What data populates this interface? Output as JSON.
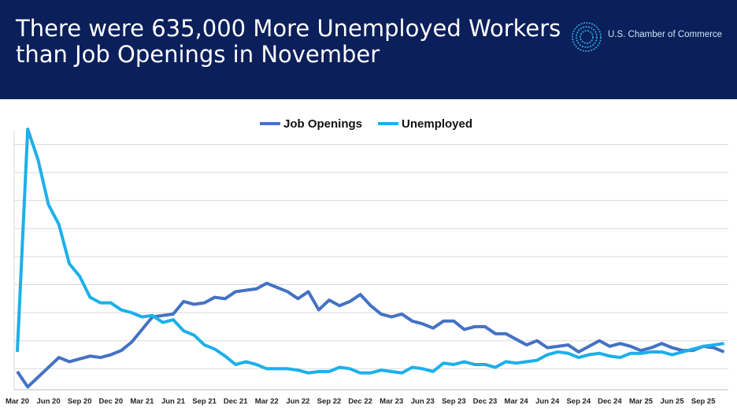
{
  "header": {
    "organization": "U.S. Chamber of Commerce"
  },
  "chart_data": {
    "type": "line",
    "title": "There were 635,000 More Unemployed Workers than Job Openings in November",
    "categories": [
      "Mar 20",
      null,
      null,
      "Jun 20",
      null,
      null,
      "Sep 20",
      null,
      null,
      "Dec 20",
      null,
      null,
      "Mar 21",
      null,
      null,
      "Jun 21",
      null,
      null,
      "Sep 21",
      null,
      null,
      "Dec 21",
      null,
      null,
      "Mar 22",
      null,
      null,
      "Jun 22",
      null,
      null,
      "Sep 22",
      null,
      null,
      "Dec 22",
      null,
      null,
      "Mar 23",
      null,
      null,
      "Jun 23",
      null,
      null,
      "Sep 23",
      null,
      null,
      "Dec 23",
      null,
      null,
      "Mar 24",
      null,
      null,
      "Jun 24",
      null,
      null,
      "Sep 24",
      null,
      null,
      "Dec 24",
      null,
      null,
      "Mar 25",
      null,
      null,
      "Jun 25",
      null,
      null,
      "Sep 25",
      null,
      null
    ],
    "series": [
      {
        "name": "Job Openings",
        "color": "#4472c4",
        "values": [
          5.8,
          4.7,
          5.4,
          6.1,
          6.8,
          6.5,
          6.7,
          6.9,
          6.8,
          7.0,
          7.3,
          7.9,
          8.8,
          9.7,
          9.8,
          9.9,
          10.8,
          10.6,
          10.7,
          11.1,
          11.0,
          11.5,
          11.6,
          11.7,
          12.1,
          11.8,
          11.5,
          11.0,
          11.5,
          10.2,
          10.9,
          10.5,
          10.8,
          11.3,
          10.5,
          9.9,
          9.7,
          9.9,
          9.4,
          9.2,
          8.9,
          9.4,
          9.4,
          8.8,
          9.0,
          9.0,
          8.5,
          8.5,
          8.1,
          7.7,
          8.0,
          7.5,
          7.6,
          7.7,
          7.2,
          7.6,
          8.0,
          7.6,
          7.8,
          7.6,
          7.3,
          7.5,
          7.8,
          7.5,
          7.3,
          7.3,
          7.6,
          7.5,
          7.2
        ]
      },
      {
        "name": "Unemployed",
        "color": "#1cb0ea",
        "values": [
          7.2,
          23.1,
          20.9,
          17.7,
          16.3,
          13.5,
          12.6,
          11.1,
          10.7,
          10.7,
          10.2,
          10.0,
          9.7,
          9.8,
          9.3,
          9.5,
          8.7,
          8.4,
          7.7,
          7.4,
          6.9,
          6.3,
          6.5,
          6.3,
          6.0,
          6.0,
          6.0,
          5.9,
          5.7,
          5.8,
          5.8,
          6.1,
          6.0,
          5.7,
          5.7,
          5.9,
          5.8,
          5.7,
          6.1,
          6.0,
          5.8,
          6.4,
          6.3,
          6.5,
          6.3,
          6.3,
          6.1,
          6.5,
          6.4,
          6.5,
          6.6,
          7.0,
          7.2,
          7.1,
          6.8,
          7.0,
          7.1,
          6.9,
          6.8,
          7.1,
          7.1,
          7.2,
          7.2,
          7.0,
          7.2,
          7.4,
          7.6,
          7.7,
          7.8
        ]
      }
    ],
    "ylim": [
      4.5,
      24
    ],
    "yticks": [
      6,
      8,
      10,
      12,
      14,
      16,
      18,
      20,
      22
    ],
    "grid": true,
    "legend": "top"
  }
}
